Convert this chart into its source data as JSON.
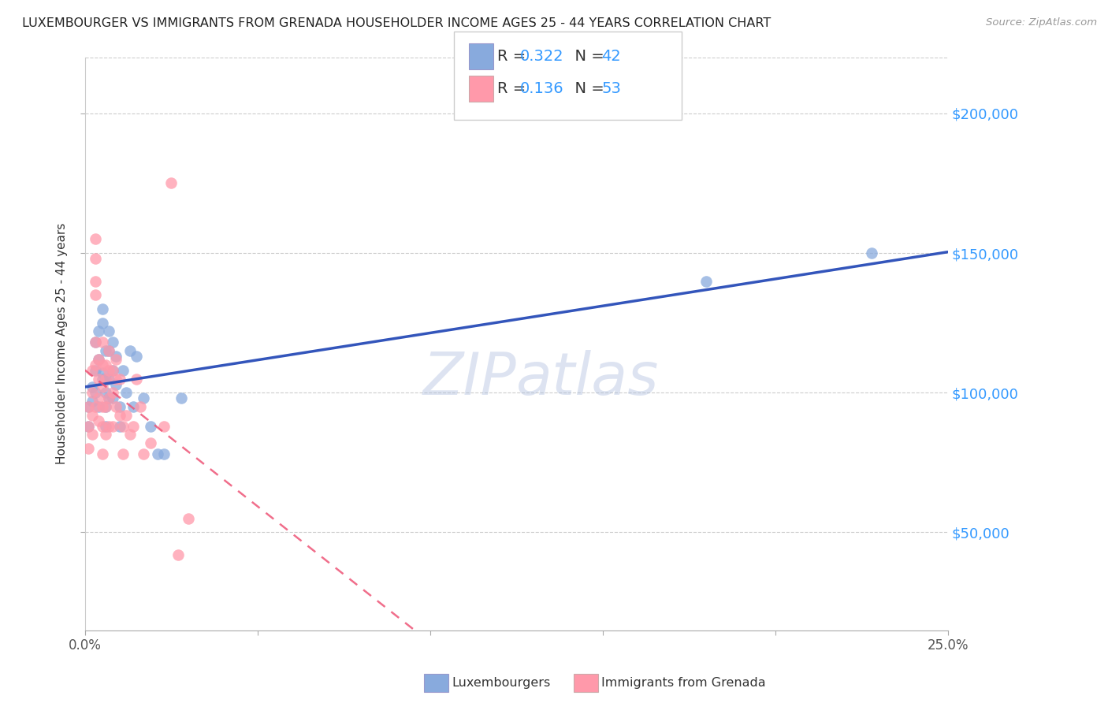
{
  "title": "LUXEMBOURGER VS IMMIGRANTS FROM GRENADA HOUSEHOLDER INCOME AGES 25 - 44 YEARS CORRELATION CHART",
  "source": "Source: ZipAtlas.com",
  "ylabel": "Householder Income Ages 25 - 44 years",
  "ytick_labels": [
    "$50,000",
    "$100,000",
    "$150,000",
    "$200,000"
  ],
  "ytick_values": [
    50000,
    100000,
    150000,
    200000
  ],
  "legend_label_blue": "Luxembourgers",
  "legend_label_pink": "Immigrants from Grenada",
  "legend_R_blue": "0.322",
  "legend_N_blue": "42",
  "legend_R_pink": "0.136",
  "legend_N_pink": "53",
  "blue_color": "#88AADD",
  "pink_color": "#FF99AA",
  "blue_line_color": "#3355BB",
  "pink_line_color": "#EE5577",
  "watermark_color": "#AABBDD",
  "xlim": [
    0.0,
    0.25
  ],
  "ylim": [
    15000,
    220000
  ],
  "xticks": [
    0.0,
    0.05,
    0.1,
    0.15,
    0.2,
    0.25
  ],
  "blue_scatter_x": [
    0.001,
    0.001,
    0.002,
    0.002,
    0.003,
    0.003,
    0.003,
    0.004,
    0.004,
    0.004,
    0.005,
    0.005,
    0.005,
    0.005,
    0.006,
    0.006,
    0.006,
    0.006,
    0.006,
    0.007,
    0.007,
    0.007,
    0.007,
    0.008,
    0.008,
    0.008,
    0.009,
    0.009,
    0.01,
    0.01,
    0.011,
    0.012,
    0.013,
    0.014,
    0.015,
    0.017,
    0.019,
    0.021,
    0.023,
    0.028,
    0.18,
    0.228
  ],
  "blue_scatter_y": [
    95000,
    88000,
    102000,
    97000,
    118000,
    108000,
    100000,
    122000,
    112000,
    95000,
    130000,
    107000,
    125000,
    105000,
    115000,
    105000,
    100000,
    95000,
    88000,
    122000,
    115000,
    105000,
    98000,
    118000,
    108000,
    98000,
    113000,
    103000,
    95000,
    88000,
    108000,
    100000,
    115000,
    95000,
    113000,
    98000,
    88000,
    78000,
    78000,
    98000,
    140000,
    150000
  ],
  "pink_scatter_x": [
    0.001,
    0.001,
    0.001,
    0.002,
    0.002,
    0.002,
    0.002,
    0.003,
    0.003,
    0.003,
    0.003,
    0.003,
    0.003,
    0.003,
    0.004,
    0.004,
    0.004,
    0.004,
    0.005,
    0.005,
    0.005,
    0.005,
    0.005,
    0.005,
    0.006,
    0.006,
    0.006,
    0.006,
    0.007,
    0.007,
    0.007,
    0.007,
    0.008,
    0.008,
    0.008,
    0.009,
    0.009,
    0.009,
    0.01,
    0.01,
    0.011,
    0.011,
    0.012,
    0.013,
    0.014,
    0.015,
    0.016,
    0.017,
    0.019,
    0.023,
    0.025,
    0.027,
    0.03
  ],
  "pink_scatter_y": [
    95000,
    88000,
    80000,
    108000,
    100000,
    92000,
    85000,
    155000,
    148000,
    140000,
    135000,
    118000,
    110000,
    95000,
    112000,
    105000,
    98000,
    90000,
    118000,
    110000,
    102000,
    95000,
    88000,
    78000,
    110000,
    105000,
    95000,
    85000,
    115000,
    108000,
    98000,
    88000,
    108000,
    100000,
    88000,
    112000,
    105000,
    95000,
    105000,
    92000,
    88000,
    78000,
    92000,
    85000,
    88000,
    105000,
    95000,
    78000,
    82000,
    88000,
    175000,
    42000,
    55000
  ]
}
